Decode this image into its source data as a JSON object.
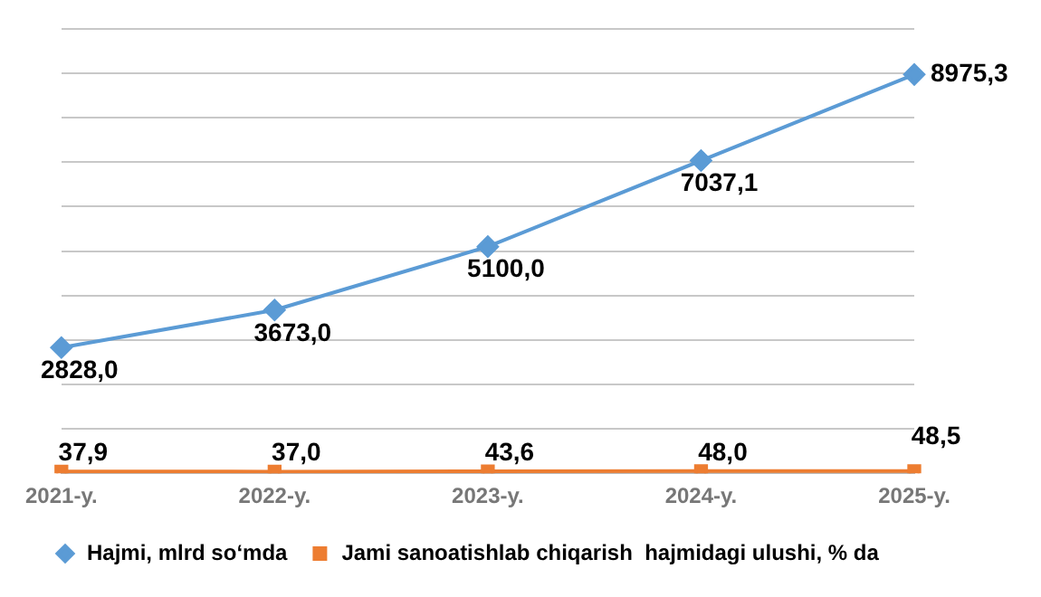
{
  "chart_data": {
    "type": "line",
    "categories": [
      "2021-y.",
      "2022-y.",
      "2023-y.",
      "2024-y.",
      "2025-y."
    ],
    "series": [
      {
        "name": "Hajmi, mlrd so‘mda",
        "color": "#5b9bd5",
        "marker": "diamond",
        "values": [
          2828.0,
          3673.0,
          5100.0,
          7037.1,
          8975.3
        ],
        "value_labels": [
          "2828,0",
          "3673,0",
          "5100,0",
          "7037,1",
          "8975,3"
        ]
      },
      {
        "name": "Jami sanoatishlab chiqarish  hajmidagi ulushi, % da",
        "color": "#ed7d31",
        "marker": "square",
        "values": [
          37.9,
          37.0,
          43.6,
          48.0,
          48.5
        ],
        "value_labels": [
          "37,9",
          "37,0",
          "43,6",
          "48,0",
          "48,5"
        ]
      }
    ],
    "ylim": [
      0,
      10000
    ],
    "yticks": [
      0,
      1000,
      2000,
      3000,
      4000,
      5000,
      6000,
      7000,
      8000,
      9000,
      10000
    ],
    "tick_labels": "x",
    "grid": "y",
    "legend": "bottom"
  }
}
